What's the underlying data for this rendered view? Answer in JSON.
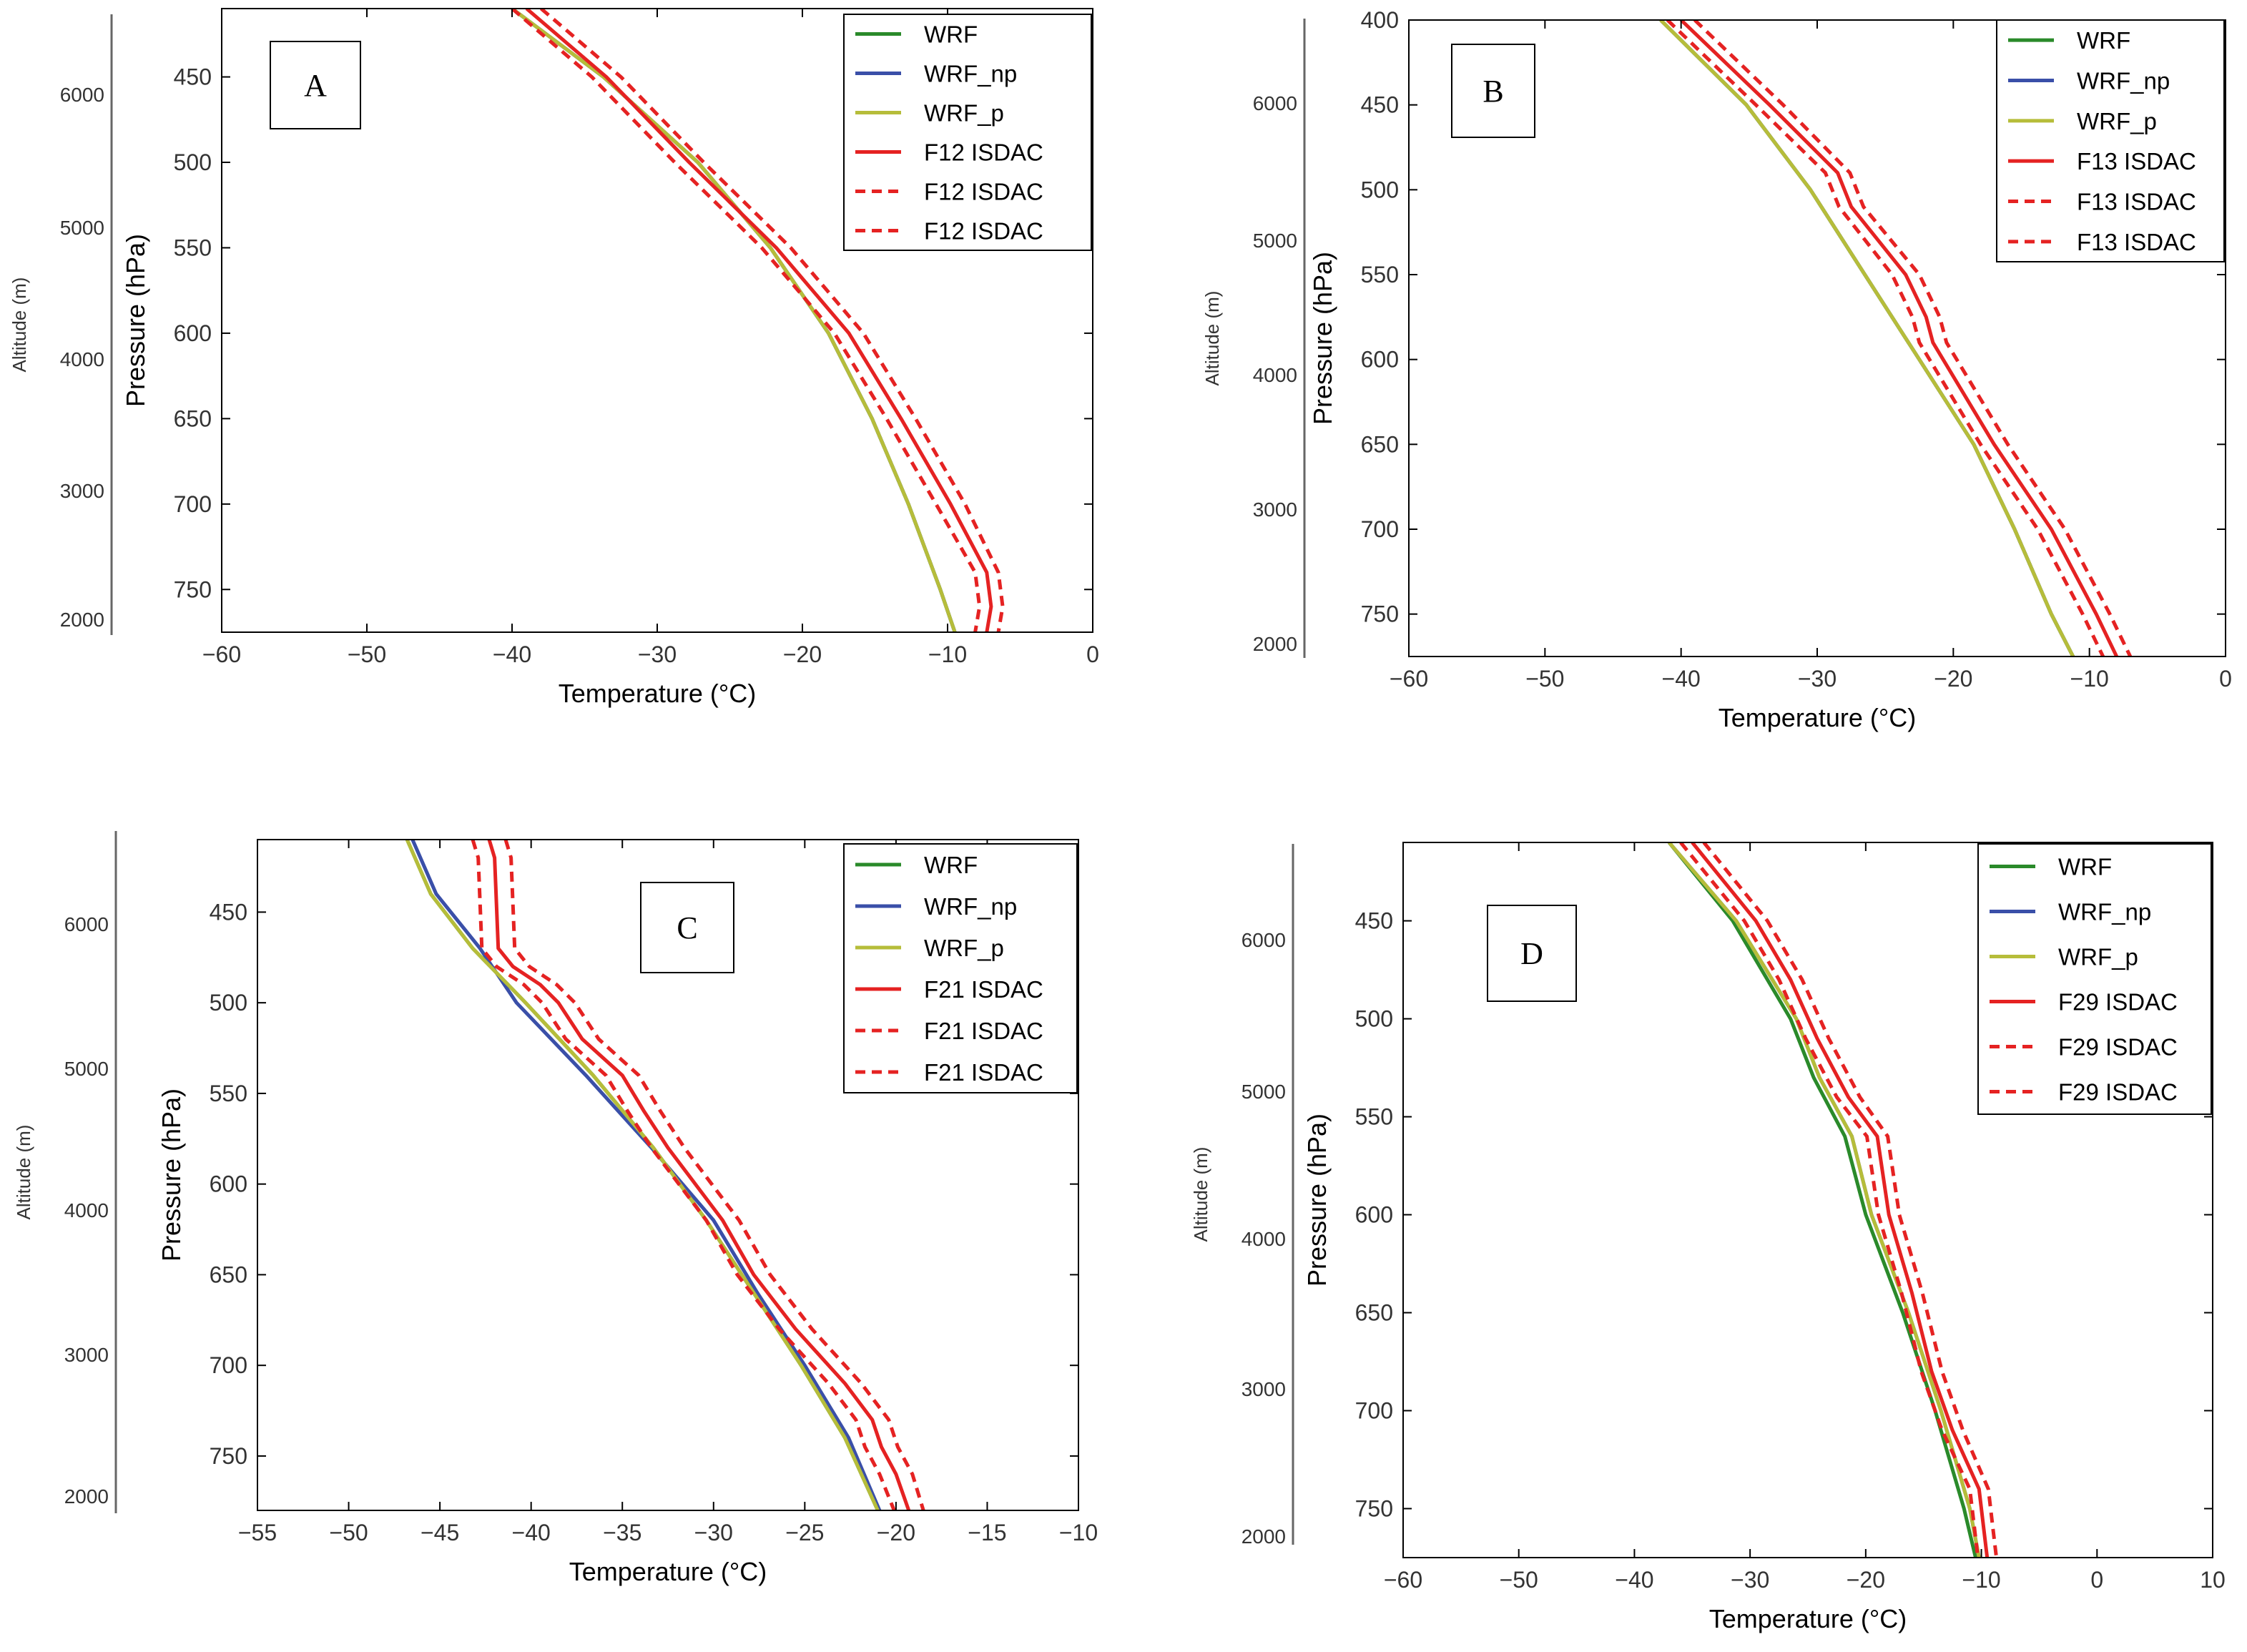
{
  "colors": {
    "WRF": "#2a8a2a",
    "WRF_np": "#3a4fa8",
    "WRF_p": "#b6bd3a",
    "ISDAC": "#e52222"
  },
  "chart_data": [
    {
      "type": "line",
      "title": "A",
      "xlabel": "Temperature (°C)",
      "ylabel": "Pressure (hPa)",
      "y2label": "Altitude (m)",
      "xlim": [
        -60,
        0
      ],
      "ylim": [
        775,
        410
      ],
      "xticks": [
        "−60",
        "−50",
        "−40",
        "−30",
        "−20",
        "−10",
        "0"
      ],
      "yticks": [
        "450",
        "500",
        "550",
        "600",
        "650",
        "700",
        "750"
      ],
      "alt_ticks": [
        "6000",
        "5000",
        "4000",
        "3000",
        "2000"
      ],
      "legend": [
        "WRF",
        "WRF_np",
        "WRF_p",
        "F12 ISDAC",
        "F12 ISDAC",
        "F12 ISDAC"
      ],
      "series": [
        {
          "name": "WRF",
          "p": [
            410,
            450,
            500,
            550,
            600,
            650,
            700,
            750,
            775
          ],
          "t": [
            -40,
            -33.7,
            -27.2,
            -22.2,
            -18.2,
            -15.2,
            -12.7,
            -10.5,
            -9.5
          ]
        },
        {
          "name": "WRF_np",
          "p": [
            410,
            450,
            500,
            550,
            600,
            650,
            700,
            750,
            775
          ],
          "t": [
            -40,
            -33.7,
            -27.2,
            -22.2,
            -18.2,
            -15.2,
            -12.7,
            -10.5,
            -9.5
          ]
        },
        {
          "name": "WRF_p",
          "p": [
            410,
            450,
            500,
            550,
            600,
            650,
            700,
            750,
            775
          ],
          "t": [
            -40,
            -33.7,
            -27.2,
            -22.2,
            -18.2,
            -15.2,
            -12.7,
            -10.5,
            -9.5
          ]
        },
        {
          "name": "F12 ISDAC",
          "p": [
            410,
            450,
            500,
            550,
            600,
            650,
            700,
            740,
            760,
            775
          ],
          "t": [
            -39,
            -33.5,
            -27.8,
            -21.8,
            -16.8,
            -13.2,
            -9.8,
            -7.3,
            -7.0,
            -7.3
          ]
        },
        {
          "name": "F12 ISDAC",
          "p": [
            410,
            450,
            500,
            550,
            600,
            650,
            700,
            740,
            760,
            775
          ],
          "t": [
            -38,
            -32.5,
            -26.8,
            -20.8,
            -15.8,
            -12.2,
            -8.8,
            -6.5,
            -6.2,
            -6.5
          ]
        },
        {
          "name": "F12 ISDAC",
          "p": [
            410,
            450,
            500,
            550,
            600,
            650,
            700,
            740,
            760,
            775
          ],
          "t": [
            -40,
            -34.5,
            -28.8,
            -22.8,
            -17.8,
            -14.2,
            -10.8,
            -8.1,
            -7.8,
            -8.1
          ]
        }
      ]
    },
    {
      "type": "line",
      "title": "B",
      "xlabel": "Temperature (°C)",
      "ylabel": "Pressure (hPa)",
      "y2label": "Altitude (m)",
      "xlim": [
        -60,
        0
      ],
      "ylim": [
        775,
        400
      ],
      "xticks": [
        "−60",
        "−50",
        "−40",
        "−30",
        "−20",
        "−10",
        "0"
      ],
      "yticks": [
        "400",
        "450",
        "500",
        "550",
        "600",
        "650",
        "700",
        "750"
      ],
      "alt_ticks": [
        "6000",
        "5000",
        "4000",
        "3000",
        "2000"
      ],
      "legend": [
        "WRF",
        "WRF_np",
        "WRF_p",
        "F13 ISDAC",
        "F13 ISDAC",
        "F13 ISDAC"
      ],
      "series": [
        {
          "name": "WRF",
          "p": [
            400,
            450,
            500,
            550,
            600,
            650,
            700,
            750,
            775
          ],
          "t": [
            -41.5,
            -35.2,
            -30.5,
            -26.5,
            -22.5,
            -18.5,
            -15.5,
            -12.8,
            -11.2
          ]
        },
        {
          "name": "WRF_np",
          "p": [
            400,
            450,
            500,
            550,
            600,
            650,
            700,
            750,
            775
          ],
          "t": [
            -41.5,
            -35.2,
            -30.5,
            -26.5,
            -22.5,
            -18.5,
            -15.5,
            -12.8,
            -11.2
          ]
        },
        {
          "name": "WRF_p",
          "p": [
            400,
            450,
            500,
            550,
            600,
            650,
            700,
            750,
            775
          ],
          "t": [
            -41.5,
            -35.2,
            -30.5,
            -26.5,
            -22.5,
            -18.5,
            -15.5,
            -12.8,
            -11.2
          ]
        },
        {
          "name": "F13 ISDAC",
          "p": [
            400,
            450,
            490,
            510,
            550,
            575,
            590,
            650,
            700,
            750,
            775
          ],
          "t": [
            -40,
            -33.5,
            -28.5,
            -27.5,
            -23.5,
            -22,
            -21.5,
            -17,
            -12.8,
            -9.5,
            -8
          ]
        },
        {
          "name": "F13 ISDAC",
          "p": [
            400,
            450,
            490,
            510,
            550,
            575,
            590,
            650,
            700,
            750,
            775
          ],
          "t": [
            -39,
            -32.5,
            -27.6,
            -26.6,
            -22.5,
            -21,
            -20.5,
            -16,
            -11.8,
            -8.5,
            -7
          ]
        },
        {
          "name": "F13 ISDAC",
          "p": [
            400,
            450,
            490,
            510,
            550,
            575,
            590,
            650,
            700,
            750,
            775
          ],
          "t": [
            -41,
            -34.5,
            -29.4,
            -28.4,
            -24.5,
            -23,
            -22.5,
            -18,
            -13.8,
            -10.5,
            -9
          ]
        }
      ]
    },
    {
      "type": "line",
      "title": "C",
      "xlabel": "Temperature (°C)",
      "ylabel": "Pressure (hPa)",
      "y2label": "Altitude (m)",
      "xlim": [
        -55,
        -10
      ],
      "ylim": [
        780,
        410
      ],
      "xticks": [
        "−55",
        "−50",
        "−45",
        "−40",
        "−35",
        "−30",
        "−25",
        "−20",
        "−15",
        "−10"
      ],
      "yticks": [
        "450",
        "500",
        "550",
        "600",
        "650",
        "700",
        "750"
      ],
      "alt_ticks": [
        "6000",
        "5000",
        "4000",
        "3000",
        "2000"
      ],
      "legend": [
        "WRF",
        "WRF_np",
        "WRF_p",
        "F21 ISDAC",
        "F21 ISDAC",
        "F21 ISDAC"
      ],
      "series": [
        {
          "name": "WRF",
          "p": [
            410,
            440,
            470,
            500,
            540,
            580,
            620,
            660,
            700,
            740,
            780
          ],
          "t": [
            -46.8,
            -45.5,
            -43.2,
            -40.3,
            -36.6,
            -33.3,
            -30.4,
            -27.8,
            -25.2,
            -22.8,
            -21
          ]
        },
        {
          "name": "WRF_np",
          "p": [
            410,
            440,
            470,
            500,
            540,
            580,
            620,
            660,
            700,
            740,
            780
          ],
          "t": [
            -46.5,
            -45.2,
            -42.8,
            -40.8,
            -37.0,
            -33.4,
            -30.0,
            -27.6,
            -25.0,
            -22.6,
            -20.9
          ]
        },
        {
          "name": "WRF_p",
          "p": [
            410,
            440,
            470,
            500,
            540,
            580,
            620,
            660,
            700,
            740,
            780
          ],
          "t": [
            -46.8,
            -45.5,
            -43.2,
            -40.3,
            -36.6,
            -33.3,
            -30.4,
            -27.8,
            -25.2,
            -22.8,
            -21
          ]
        },
        {
          "name": "F21 ISDAC",
          "p": [
            410,
            420,
            470,
            480,
            490,
            500,
            520,
            540,
            560,
            580,
            600,
            620,
            650,
            680,
            710,
            730,
            745,
            760,
            780
          ],
          "t": [
            -42.3,
            -42,
            -41.8,
            -41,
            -39.5,
            -38.5,
            -37.2,
            -35,
            -33.8,
            -32.5,
            -31,
            -29.5,
            -27.8,
            -25.5,
            -22.8,
            -21.3,
            -20.8,
            -20,
            -19.3
          ]
        },
        {
          "name": "F21 ISDAC",
          "p": [
            410,
            420,
            470,
            480,
            490,
            500,
            520,
            540,
            560,
            580,
            600,
            620,
            650,
            680,
            710,
            730,
            745,
            760,
            780
          ],
          "t": [
            -41.4,
            -41.1,
            -40.9,
            -40.1,
            -38.6,
            -37.6,
            -36.3,
            -34.1,
            -32.9,
            -31.6,
            -30.1,
            -28.6,
            -26.9,
            -24.6,
            -21.9,
            -20.4,
            -19.9,
            -19.1,
            -18.5
          ]
        },
        {
          "name": "F21 ISDAC",
          "p": [
            410,
            420,
            470,
            480,
            490,
            500,
            520,
            540,
            560,
            580,
            600,
            620,
            650,
            680,
            710,
            730,
            745,
            760,
            780
          ],
          "t": [
            -43.2,
            -42.9,
            -42.7,
            -41.9,
            -40.4,
            -39.4,
            -38.1,
            -35.9,
            -34.7,
            -33.4,
            -31.9,
            -30.4,
            -28.7,
            -26.4,
            -23.7,
            -22.2,
            -21.7,
            -20.9,
            -20.1
          ]
        }
      ]
    },
    {
      "type": "line",
      "title": "D",
      "xlabel": "Temperature (°C)",
      "ylabel": "Pressure (hPa)",
      "y2label": "Altitude (m)",
      "xlim": [
        -60,
        10
      ],
      "ylim": [
        775,
        410
      ],
      "xticks": [
        "−60",
        "−50",
        "−40",
        "−30",
        "−20",
        "−10",
        "0",
        "10"
      ],
      "yticks": [
        "450",
        "500",
        "550",
        "600",
        "650",
        "700",
        "750"
      ],
      "alt_ticks": [
        "6000",
        "5000",
        "4000",
        "3000",
        "2000"
      ],
      "legend": [
        "WRF",
        "WRF_np",
        "WRF_p",
        "F29 ISDAC",
        "F29 ISDAC",
        "F29 ISDAC"
      ],
      "series": [
        {
          "name": "WRF",
          "p": [
            410,
            450,
            500,
            530,
            560,
            600,
            650,
            700,
            750,
            775
          ],
          "t": [
            -37,
            -31.5,
            -26.5,
            -24.5,
            -21.8,
            -20.0,
            -16.8,
            -14.0,
            -11.5,
            -10.5
          ]
        },
        {
          "name": "WRF_np",
          "p": [
            410,
            450,
            500,
            530,
            560,
            600,
            650,
            700,
            750,
            775
          ],
          "t": [
            -37,
            -31.2,
            -26.0,
            -24.0,
            -21.2,
            -19.5,
            -16.3,
            -13.5,
            -11.0,
            -10.2
          ]
        },
        {
          "name": "WRF_p",
          "p": [
            410,
            450,
            500,
            530,
            560,
            600,
            650,
            700,
            750,
            775
          ],
          "t": [
            -37,
            -31.2,
            -26.0,
            -24.0,
            -21.2,
            -19.5,
            -16.3,
            -13.5,
            -11.0,
            -10.2
          ]
        },
        {
          "name": "F29 ISDAC",
          "p": [
            410,
            450,
            480,
            510,
            540,
            560,
            600,
            640,
            680,
            710,
            740,
            760,
            775
          ],
          "t": [
            -35,
            -29.5,
            -26.5,
            -24.2,
            -21.5,
            -19.0,
            -18.0,
            -16.0,
            -14.3,
            -12.5,
            -10.2,
            -9.8,
            -9.5
          ]
        },
        {
          "name": "F29 ISDAC",
          "p": [
            410,
            450,
            480,
            510,
            540,
            560,
            600,
            640,
            680,
            710,
            740,
            760,
            775
          ],
          "t": [
            -34,
            -28.5,
            -25.5,
            -23.2,
            -20.5,
            -18.1,
            -17.1,
            -15.1,
            -13.4,
            -11.6,
            -9.4,
            -9.0,
            -8.7
          ]
        },
        {
          "name": "F29 ISDAC",
          "p": [
            410,
            450,
            480,
            510,
            540,
            560,
            600,
            640,
            680,
            710,
            740,
            760,
            775
          ],
          "t": [
            -36,
            -30.5,
            -27.5,
            -25.2,
            -22.5,
            -19.9,
            -18.9,
            -16.9,
            -15.2,
            -13.4,
            -11.0,
            -10.6,
            -10.3
          ]
        }
      ]
    }
  ]
}
